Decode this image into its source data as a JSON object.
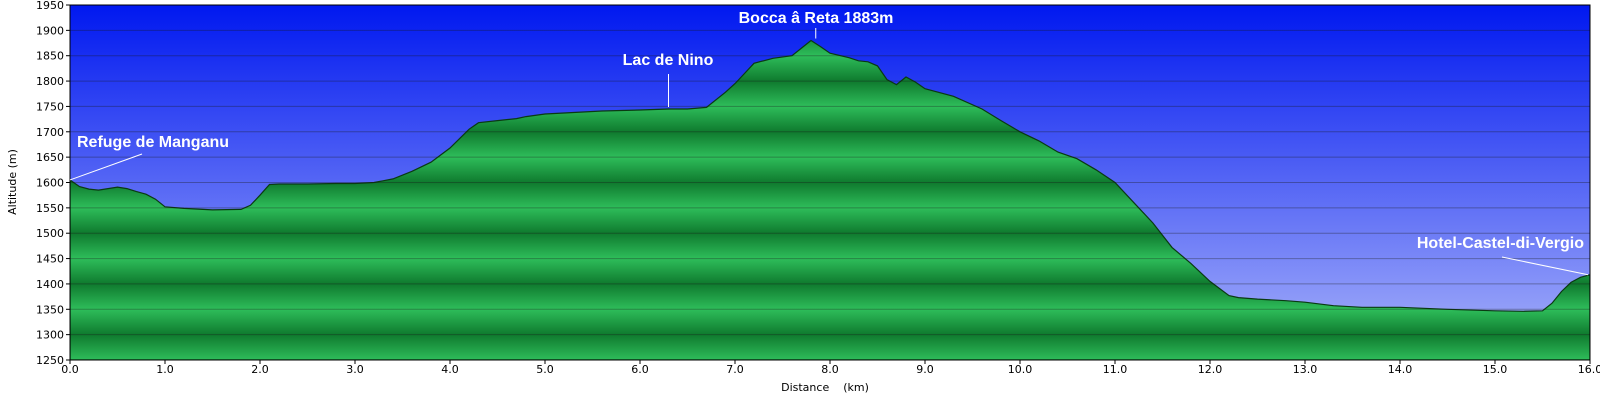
{
  "chart_data": {
    "type": "area",
    "title": "",
    "xlabel": "Distance    (km)",
    "ylabel": "Altitude (m)",
    "xlim": [
      0,
      16
    ],
    "ylim": [
      1250,
      1950
    ],
    "x_ticks": [
      "0.0",
      "1.0",
      "2.0",
      "3.0",
      "4.0",
      "5.0",
      "6.0",
      "7.0",
      "8.0",
      "9.0",
      "10.0",
      "11.0",
      "12.0",
      "13.0",
      "14.0",
      "15.0",
      "16.0"
    ],
    "y_ticks": [
      "1250",
      "1300",
      "1350",
      "1400",
      "1450",
      "1500",
      "1550",
      "1600",
      "1650",
      "1700",
      "1750",
      "1800",
      "1850",
      "1900",
      "1950"
    ],
    "grid": true,
    "colors": {
      "sky_top": "#0018f0",
      "sky_bottom": "#aab4fa",
      "terrain_light": "#2ebd5a",
      "terrain_dark": "#0f7a2e",
      "outline": "#0a3a12"
    },
    "series": [
      {
        "x": [
          0.0,
          0.1,
          0.2,
          0.3,
          0.4,
          0.5,
          0.6,
          0.7,
          0.8,
          0.9,
          1.0,
          1.2,
          1.5,
          1.8,
          1.9,
          2.0,
          2.1,
          2.2,
          2.3,
          2.5,
          2.8,
          3.0,
          3.2,
          3.4,
          3.6,
          3.8,
          4.0,
          4.2,
          4.3,
          4.5,
          4.7,
          4.8,
          5.0,
          5.3,
          5.6,
          6.0,
          6.3,
          6.5,
          6.7,
          6.9,
          7.0,
          7.1,
          7.2,
          7.4,
          7.6,
          7.7,
          7.8,
          7.9,
          8.0,
          8.2,
          8.3,
          8.4,
          8.5,
          8.6,
          8.7,
          8.8,
          8.9,
          9.0,
          9.3,
          9.6,
          9.8,
          10.0,
          10.2,
          10.4,
          10.6,
          10.8,
          11.0,
          11.2,
          11.4,
          11.6,
          11.8,
          12.0,
          12.2,
          12.3,
          12.5,
          12.8,
          13.0,
          13.3,
          13.6,
          14.0,
          14.5,
          15.0,
          15.3,
          15.5,
          15.6,
          15.7,
          15.8,
          15.9,
          16.0
        ],
        "y": [
          1605,
          1592,
          1587,
          1585,
          1588,
          1591,
          1588,
          1582,
          1577,
          1567,
          1552,
          1549,
          1546,
          1547,
          1555,
          1575,
          1596,
          1597,
          1597,
          1597,
          1598,
          1598,
          1600,
          1607,
          1622,
          1640,
          1668,
          1705,
          1718,
          1722,
          1726,
          1730,
          1735,
          1738,
          1741,
          1743,
          1745,
          1745,
          1748,
          1778,
          1795,
          1815,
          1835,
          1845,
          1850,
          1865,
          1880,
          1868,
          1855,
          1846,
          1840,
          1838,
          1830,
          1803,
          1793,
          1808,
          1798,
          1785,
          1770,
          1745,
          1722,
          1700,
          1682,
          1660,
          1647,
          1625,
          1600,
          1560,
          1520,
          1472,
          1440,
          1405,
          1377,
          1373,
          1370,
          1367,
          1364,
          1357,
          1354,
          1354,
          1350,
          1347,
          1346,
          1347,
          1362,
          1385,
          1403,
          1413,
          1418
        ]
      }
    ],
    "annotations": [
      {
        "label": "Refuge de Manganu",
        "x": 0.0,
        "y": 1605
      },
      {
        "label": "Lac de Nino",
        "x": 6.3,
        "y": 1745
      },
      {
        "label": "Bocca â Reta 1883m",
        "x": 7.85,
        "y": 1880
      },
      {
        "label": "Hotel-Castel-di-Vergio",
        "x": 16.0,
        "y": 1418
      }
    ]
  }
}
